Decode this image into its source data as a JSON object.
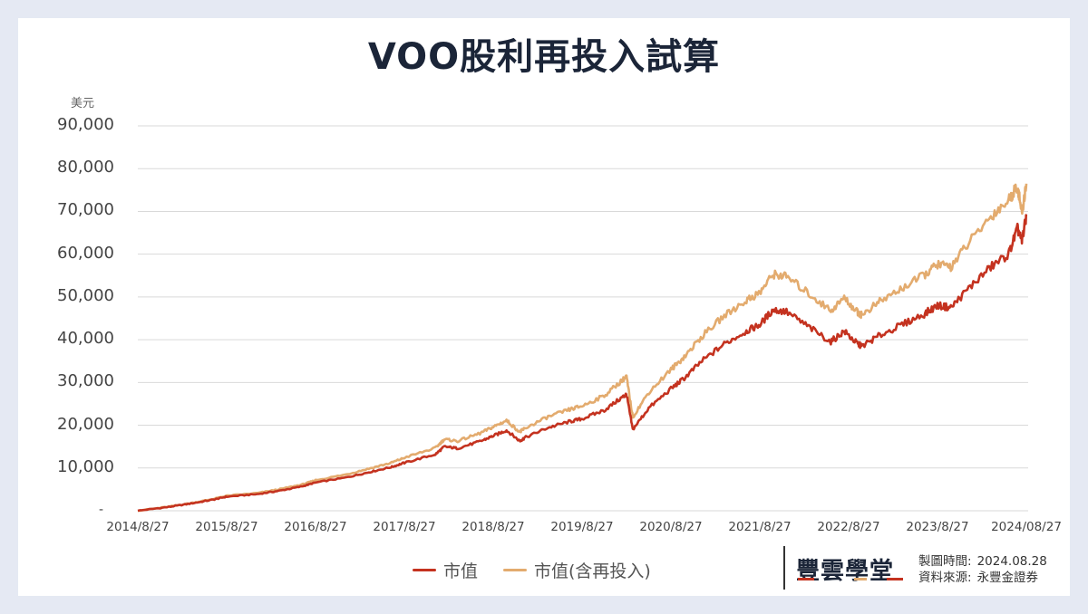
{
  "title": "VOO股利再投入試算",
  "y_unit": "美元",
  "y_ticks": [
    {
      "label": "90,000",
      "value": 90000
    },
    {
      "label": "80,000",
      "value": 80000
    },
    {
      "label": "70,000",
      "value": 70000
    },
    {
      "label": "60,000",
      "value": 60000
    },
    {
      "label": "50,000",
      "value": 50000
    },
    {
      "label": "40,000",
      "value": 40000
    },
    {
      "label": "30,000",
      "value": 30000
    },
    {
      "label": "20,000",
      "value": 20000
    },
    {
      "label": "10,000",
      "value": 10000
    },
    {
      "label": "-",
      "value": 0
    }
  ],
  "x_ticks": [
    "2014/8/27",
    "2015/8/27",
    "2016/8/27",
    "2017/8/27",
    "2018/8/27",
    "2019/8/27",
    "2020/8/27",
    "2021/8/27",
    "2022/8/27",
    "2023/8/27",
    "2024/08/27"
  ],
  "legend": {
    "series1": "市值",
    "series2": "市值(含再投入)"
  },
  "colors": {
    "series1": "#c4321f",
    "series2": "#e3ab6e",
    "grid": "#d9d9d9",
    "background": "#e5e9f3",
    "title": "#1b2538"
  },
  "footer": {
    "brand": "豐雲學堂",
    "made_label": "製圖時間:",
    "made_value": "2024.08.28",
    "source_label": "資料來源:",
    "source_value": "永豐金證券"
  },
  "chart_data": {
    "type": "line",
    "title": "VOO股利再投入試算",
    "xlabel": "",
    "ylabel": "美元",
    "ylim": [
      0,
      90000
    ],
    "grid": true,
    "legend_position": "bottom",
    "x": [
      2014.65,
      2015.0,
      2015.25,
      2015.5,
      2015.65,
      2016.0,
      2016.25,
      2016.5,
      2016.65,
      2017.0,
      2017.25,
      2017.5,
      2017.65,
      2018.0,
      2018.1,
      2018.25,
      2018.5,
      2018.65,
      2018.8,
      2018.95,
      2019.0,
      2019.25,
      2019.5,
      2019.65,
      2019.9,
      2020.1,
      2020.15,
      2020.22,
      2020.4,
      2020.65,
      2020.8,
      2021.0,
      2021.25,
      2021.5,
      2021.65,
      2021.8,
      2021.95,
      2022.2,
      2022.45,
      2022.6,
      2022.75,
      2022.8,
      2023.0,
      2023.25,
      2023.5,
      2023.65,
      2023.8,
      2024.0,
      2024.25,
      2024.45,
      2024.55,
      2024.6,
      2024.65
    ],
    "categories": [
      "2014/8/27",
      "2015/8/27",
      "2016/8/27",
      "2017/8/27",
      "2018/8/27",
      "2019/8/27",
      "2020/8/27",
      "2021/8/27",
      "2022/8/27",
      "2023/8/27",
      "2024/08/27"
    ],
    "series": [
      {
        "name": "市值",
        "values": [
          0,
          900,
          1700,
          2600,
          3300,
          3900,
          4700,
          5700,
          6600,
          7800,
          9000,
          10200,
          11200,
          13200,
          15000,
          14600,
          16200,
          17500,
          18800,
          16300,
          17000,
          19300,
          20800,
          21500,
          23500,
          26500,
          27200,
          19000,
          24000,
          28500,
          31000,
          35000,
          39000,
          42000,
          43500,
          47000,
          46500,
          43000,
          39500,
          42000,
          39000,
          38500,
          41000,
          43500,
          46000,
          48000,
          47500,
          52000,
          57000,
          60000,
          66000,
          63000,
          69000
        ]
      },
      {
        "name": "市值(含再投入)",
        "values": [
          0,
          950,
          1800,
          2750,
          3500,
          4150,
          5050,
          6150,
          7150,
          8500,
          9850,
          11200,
          12400,
          14700,
          16700,
          16300,
          18100,
          19600,
          21100,
          18400,
          19200,
          21800,
          23600,
          24500,
          26900,
          30500,
          31300,
          21900,
          27700,
          33000,
          36000,
          40800,
          45600,
          49200,
          51000,
          55300,
          54800,
          50800,
          46800,
          49800,
          46400,
          45800,
          48900,
          52000,
          55100,
          57600,
          57100,
          62600,
          68800,
          72600,
          76000,
          69500,
          76500
        ]
      }
    ]
  }
}
